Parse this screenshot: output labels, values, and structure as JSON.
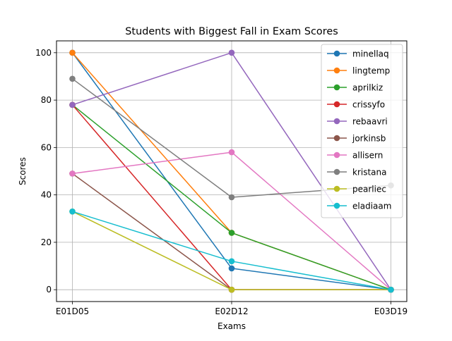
{
  "chart_data": {
    "type": "line",
    "title": "Students with Biggest Fall in Exam Scores",
    "xlabel": "Exams",
    "ylabel": "Scores",
    "categories": [
      "E01D05",
      "E02D12",
      "E03D19"
    ],
    "ylim": [
      -5,
      105
    ],
    "yticks": [
      0,
      20,
      40,
      60,
      80,
      100
    ],
    "grid": true,
    "legend_position": "top-right",
    "series": [
      {
        "name": "minellaq",
        "color": "#1f77b4",
        "values": [
          100,
          9,
          0
        ]
      },
      {
        "name": "lingtemp",
        "color": "#ff7f0e",
        "values": [
          100,
          24,
          0
        ]
      },
      {
        "name": "aprilkiz",
        "color": "#2ca02c",
        "values": [
          78,
          24,
          0
        ]
      },
      {
        "name": "crissyfo",
        "color": "#d62728",
        "values": [
          78,
          0,
          0
        ]
      },
      {
        "name": "rebaavri",
        "color": "#9467bd",
        "values": [
          78,
          100,
          0
        ]
      },
      {
        "name": "jorkinsb",
        "color": "#8c564b",
        "values": [
          49,
          0,
          0
        ]
      },
      {
        "name": "allisern",
        "color": "#e377c2",
        "values": [
          49,
          58,
          0
        ]
      },
      {
        "name": "kristana",
        "color": "#7f7f7f",
        "values": [
          89,
          39,
          44
        ]
      },
      {
        "name": "pearliec",
        "color": "#bcbd22",
        "values": [
          33,
          0,
          0
        ]
      },
      {
        "name": "eladiaam",
        "color": "#17becf",
        "values": [
          33,
          12,
          0
        ]
      }
    ]
  }
}
